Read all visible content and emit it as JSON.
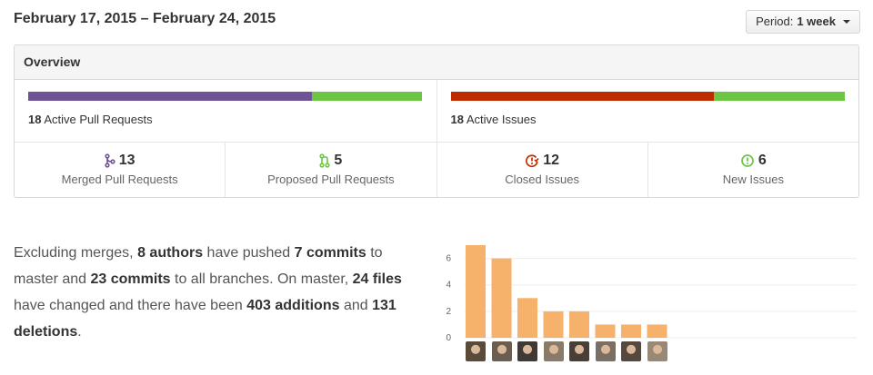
{
  "header": {
    "date_range": "February 17, 2015 – February 24, 2015",
    "period_label": "Period:",
    "period_value": "1 week"
  },
  "overview": {
    "title": "Overview",
    "pull_requests": {
      "count": "18",
      "label": "Active Pull Requests",
      "merged_fraction": 0.72,
      "color_merged": "#6e5494",
      "color_proposed": "#6cc644"
    },
    "issues": {
      "count": "18",
      "label": "Active Issues",
      "closed_fraction": 0.667,
      "color_closed": "#bd2c00",
      "color_new": "#6cc644"
    },
    "stats": [
      {
        "count": "13",
        "label": "Merged Pull Requests",
        "icon": "git-merge-icon",
        "color": "#6e5494"
      },
      {
        "count": "5",
        "label": "Proposed Pull Requests",
        "icon": "git-pull-request-icon",
        "color": "#6cc644"
      },
      {
        "count": "12",
        "label": "Closed Issues",
        "icon": "issue-closed-icon",
        "color": "#bd2c00"
      },
      {
        "count": "6",
        "label": "New Issues",
        "icon": "issue-opened-icon",
        "color": "#6cc644"
      }
    ]
  },
  "summary": {
    "p1": "Excluding merges,",
    "authors": "8 authors",
    "p2": "have pushed",
    "commits_master": "7 commits",
    "p3": "to master and",
    "commits_all": "23 commits",
    "p4": "to all branches. On master,",
    "files": "24 files",
    "p5": "have changed and there have been",
    "additions_num": "403",
    "additions_word": "additions",
    "p6": "and",
    "deletions_num": "131",
    "deletions_word": "deletions",
    "p7": "."
  },
  "chart_data": {
    "type": "bar",
    "categories": [
      "author-1",
      "author-2",
      "author-3",
      "author-4",
      "author-5",
      "author-6",
      "author-7",
      "author-8"
    ],
    "values": [
      7,
      6,
      3,
      2,
      2,
      1,
      1,
      1
    ],
    "ylim": [
      0,
      7
    ],
    "yticks": [
      "0",
      "2",
      "4",
      "6"
    ],
    "grid": true,
    "bar_color": "#f6b26b"
  }
}
